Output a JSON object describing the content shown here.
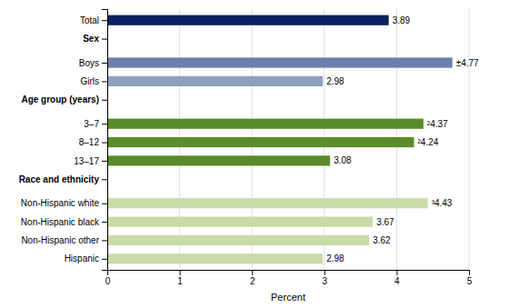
{
  "chart_data": {
    "type": "bar",
    "orientation": "horizontal",
    "categories": [
      "Total",
      "Sex",
      "Boys",
      "Girls",
      "Age group (years)",
      "3–7",
      "8–12",
      "13–17",
      "Race and ethnicity",
      "Non-Hispanic white",
      "Non-Hispanic black",
      "Non-Hispanic other",
      "Hispanic"
    ],
    "values": [
      3.89,
      null,
      4.77,
      2.98,
      null,
      4.37,
      4.24,
      3.08,
      null,
      4.43,
      3.67,
      3.62,
      2.98
    ],
    "value_labels": [
      "3.89",
      null,
      "±4.77",
      "2.98",
      null,
      "²4.37",
      "²4.24",
      "3.08",
      null,
      "³4.43",
      "3.67",
      "3.62",
      "2.98"
    ],
    "colors": [
      "#0d2060",
      null,
      "#6d7fad",
      "#8fa0bf",
      null,
      "#5b8c2a",
      "#5b8c2a",
      "#5b8c2a",
      null,
      "#c8dba8",
      "#c8dba8",
      "#c8dba8",
      "#c8dba8"
    ],
    "data_labels": true,
    "xlabel": "Percent",
    "xlim": [
      0,
      5
    ],
    "xticks": [
      0,
      1,
      2,
      3,
      4,
      5
    ],
    "grid": true
  }
}
